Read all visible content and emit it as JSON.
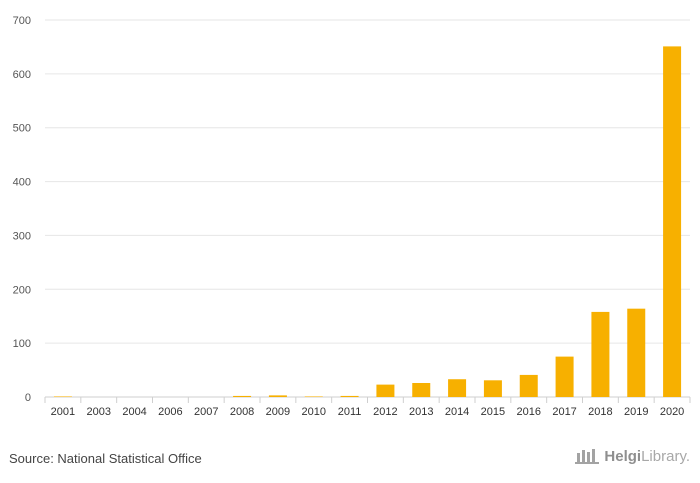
{
  "chart_data": {
    "type": "bar",
    "title": "",
    "xlabel": "",
    "ylabel": "",
    "categories": [
      "2001",
      "2003",
      "2004",
      "2006",
      "2007",
      "2008",
      "2009",
      "2010",
      "2011",
      "2012",
      "2013",
      "2014",
      "2015",
      "2016",
      "2017",
      "2018",
      "2019",
      "2020"
    ],
    "values": [
      1,
      0,
      0,
      0,
      0,
      2,
      3,
      1,
      2,
      23,
      26,
      33,
      31,
      41,
      75,
      158,
      164,
      651
    ],
    "ylim": [
      0,
      700
    ],
    "yticks": [
      0,
      100,
      200,
      300,
      400,
      500,
      600,
      700
    ],
    "color": "#f7b000",
    "grid": true
  },
  "footer": {
    "source": "Source: National Statistical Office",
    "brand_bold": "Helgi",
    "brand_light": "Library."
  }
}
